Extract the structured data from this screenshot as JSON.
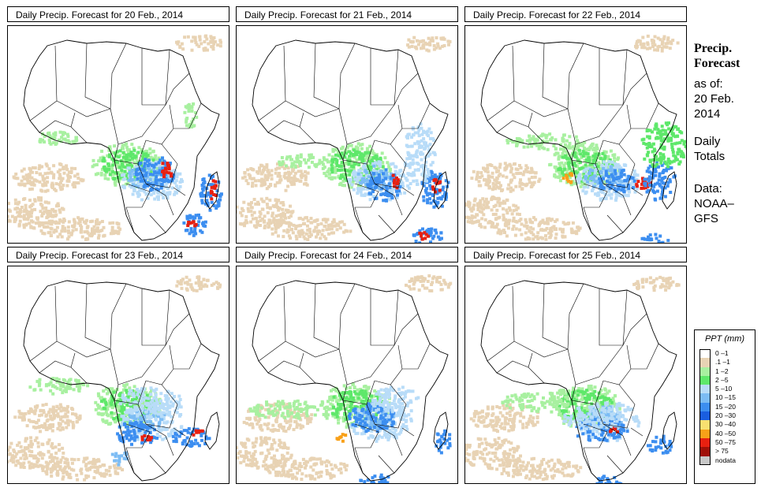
{
  "panels": [
    {
      "title": "Daily Precip. Forecast for  20 Feb., 2014"
    },
    {
      "title": "Daily Precip. Forecast for  21 Feb., 2014"
    },
    {
      "title": "Daily Precip. Forecast for  22 Feb., 2014"
    },
    {
      "title": "Daily Precip. Forecast for  23 Feb., 2014"
    },
    {
      "title": "Daily Precip. Forecast for  24 Feb., 2014"
    },
    {
      "title": "Daily Precip. Forecast for  25 Feb., 2014"
    }
  ],
  "sidebar": {
    "title_line1": "Precip.",
    "title_line2": "Forecast",
    "asof_label": "as of:",
    "date_line1": "20 Feb.",
    "date_line2": "2014",
    "totals_line1": "Daily",
    "totals_line2": "Totals",
    "data_line1": "Data:",
    "data_line2": "NOAA–",
    "data_line3": "GFS"
  },
  "legend": {
    "title": "PPT (mm)",
    "items": [
      {
        "label": "0 –1",
        "color": "#ffffff"
      },
      {
        "label": ".1 –1",
        "color": "#e8d3b4"
      },
      {
        "label": "1 –2",
        "color": "#a8f0a0"
      },
      {
        "label": "2 –5",
        "color": "#5ee86a"
      },
      {
        "label": "5 –10",
        "color": "#b8dcf8"
      },
      {
        "label": "10 –15",
        "color": "#7cbcf4"
      },
      {
        "label": "15 –20",
        "color": "#3c8ef0"
      },
      {
        "label": "20 –30",
        "color": "#1a5ee0"
      },
      {
        "label": "30 –40",
        "color": "#f8e070"
      },
      {
        "label": "40 –50",
        "color": "#f8a018"
      },
      {
        "label": "50 –75",
        "color": "#e82010"
      },
      {
        "label": "> 75",
        "color": "#a01008"
      },
      {
        "label": "nodata",
        "color": "#c8c8c8"
      }
    ]
  }
}
